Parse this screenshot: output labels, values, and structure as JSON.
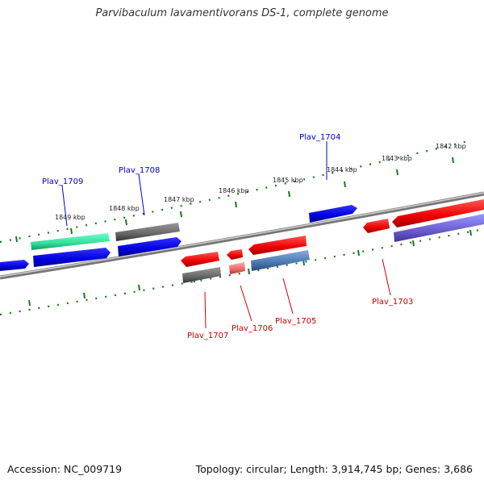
{
  "title": "Parvibaculum lavamentivorans DS-1, complete genome",
  "footer": {
    "accession": "Accession: NC_009719",
    "summary": "Topology: circular; Length: 3,914,745 bp; Genes: 3,686"
  },
  "colors": {
    "forward_label": "#0000cc",
    "reverse_label": "#cc0000",
    "ticks": "#1a7a1a",
    "backbone": "#888888"
  },
  "scale_labels": [
    "1842 kbp",
    "1843 kbp",
    "1844 kbp",
    "1845 kbp",
    "1846 kbp",
    "1847 kbp",
    "1848 kbp",
    "1849 kbp"
  ],
  "gene_labels": {
    "forward": [
      "Plav_1704",
      "Plav_1708",
      "Plav_1709"
    ],
    "reverse": [
      "Plav_1703",
      "Plav_1705",
      "Plav_1706",
      "Plav_1707"
    ]
  }
}
